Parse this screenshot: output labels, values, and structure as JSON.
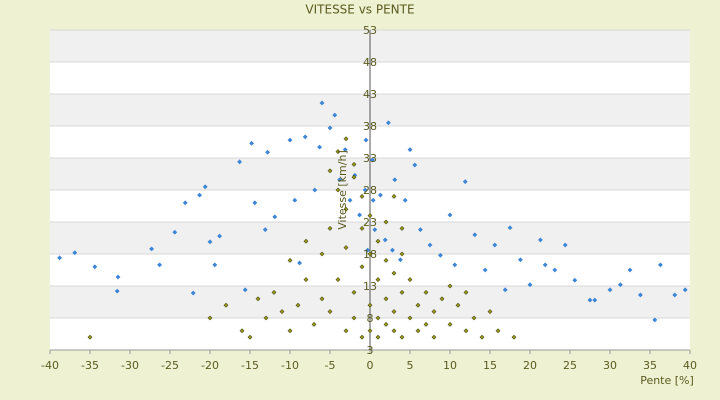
{
  "chart_data": {
    "type": "scatter",
    "title": "VITESSE vs PENTE",
    "x_label": "Pente [%]",
    "y_label": "Vitesse [km/h]",
    "xlim": [
      -40,
      40
    ],
    "xticks": [
      -40,
      -35,
      -30,
      -25,
      -20,
      -15,
      -10,
      -5,
      0,
      5,
      10,
      15,
      20,
      25,
      30,
      35,
      40
    ],
    "ylim": [
      3,
      53
    ],
    "yticks": [
      3,
      8,
      13,
      18,
      23,
      28,
      33,
      38,
      43,
      48,
      53
    ],
    "grid": true,
    "series": [
      {
        "color": "#3d85d6",
        "x": [
          -38.8,
          -36.9,
          -34.4,
          -31.5,
          -31.6,
          -27.3,
          -26.3,
          -24.4,
          -23.1,
          -21.3,
          -20.6,
          -22.1,
          -20.0,
          -19.4,
          -18.8,
          -16.3,
          -15.6,
          -14.8,
          -14.4,
          -12.8,
          -13.1,
          -11.9,
          -10.0,
          -9.4,
          -8.1,
          -8.8,
          -6.9,
          -6.3,
          -6.0,
          -5.0,
          -4.4,
          -3.8,
          -3.1,
          -2.5,
          -1.9,
          -1.3,
          -0.6,
          -0.3,
          0.6,
          1.3,
          1.9,
          2.3,
          2.8,
          3.1,
          3.8,
          4.4,
          5.0,
          5.6,
          6.3,
          7.5,
          8.8,
          10.0,
          10.6,
          11.9,
          13.1,
          14.4,
          15.6,
          16.9,
          17.5,
          18.8,
          20.0,
          21.3,
          21.9,
          23.1,
          24.4,
          25.6,
          27.5,
          28.1,
          30.0,
          31.3,
          32.5,
          33.8,
          35.6,
          36.3,
          38.1,
          39.4,
          0.3,
          0.4,
          -0.5
        ],
        "values": [
          17.4,
          18.2,
          16.0,
          14.4,
          12.2,
          18.8,
          16.3,
          21.4,
          26.0,
          27.2,
          28.5,
          11.9,
          19.9,
          16.3,
          20.8,
          32.4,
          12.4,
          35.3,
          26.0,
          33.9,
          21.8,
          23.8,
          35.8,
          26.4,
          36.3,
          16.6,
          28.0,
          34.7,
          41.6,
          37.7,
          39.7,
          29.6,
          34.3,
          26.4,
          30.3,
          24.1,
          28.0,
          18.6,
          21.8,
          27.2,
          20.2,
          38.5,
          18.6,
          29.6,
          17.1,
          26.4,
          34.3,
          31.9,
          21.8,
          19.4,
          17.8,
          24.1,
          16.3,
          29.3,
          21.0,
          15.5,
          19.4,
          12.4,
          22.1,
          17.1,
          13.2,
          20.2,
          16.3,
          15.5,
          19.4,
          13.9,
          10.8,
          10.8,
          12.4,
          13.2,
          15.5,
          11.6,
          7.7,
          16.3,
          11.6,
          12.4,
          32.7,
          26.4,
          35.8
        ]
      },
      {
        "color": "#9a9a1c",
        "x": [
          -15,
          -13,
          -12,
          -10,
          -9,
          -8,
          -7,
          -6,
          -6,
          -5,
          -5,
          -4,
          -4,
          -3,
          -3,
          -3,
          -2,
          -2,
          -2,
          -1,
          -1,
          -1,
          -1,
          0,
          0,
          0,
          0,
          1,
          1,
          1,
          1,
          2,
          2,
          2,
          2,
          3,
          3,
          3,
          4,
          4,
          4,
          5,
          5,
          6,
          6,
          7,
          7,
          8,
          8,
          9,
          10,
          11,
          12,
          13,
          14,
          15,
          16,
          18,
          -16,
          -11,
          -20,
          -35,
          -18,
          -4,
          -3,
          -2,
          -5,
          10,
          12,
          -8,
          -10,
          -14,
          4,
          3
        ],
        "values": [
          5,
          8,
          12,
          6,
          10,
          14,
          7,
          18,
          11,
          22,
          9,
          28,
          14,
          6,
          19,
          25,
          12,
          30,
          8,
          16,
          22,
          5,
          27,
          10,
          18,
          6,
          24,
          8,
          14,
          20,
          5,
          11,
          17,
          23,
          7,
          9,
          15,
          6,
          12,
          18,
          5,
          8,
          14,
          10,
          6,
          12,
          7,
          9,
          5,
          11,
          7,
          10,
          6,
          8,
          5,
          9,
          6,
          5,
          6,
          9,
          8,
          5,
          10,
          34,
          36,
          32,
          31,
          13,
          12,
          20,
          17,
          11,
          22,
          27
        ]
      }
    ]
  }
}
